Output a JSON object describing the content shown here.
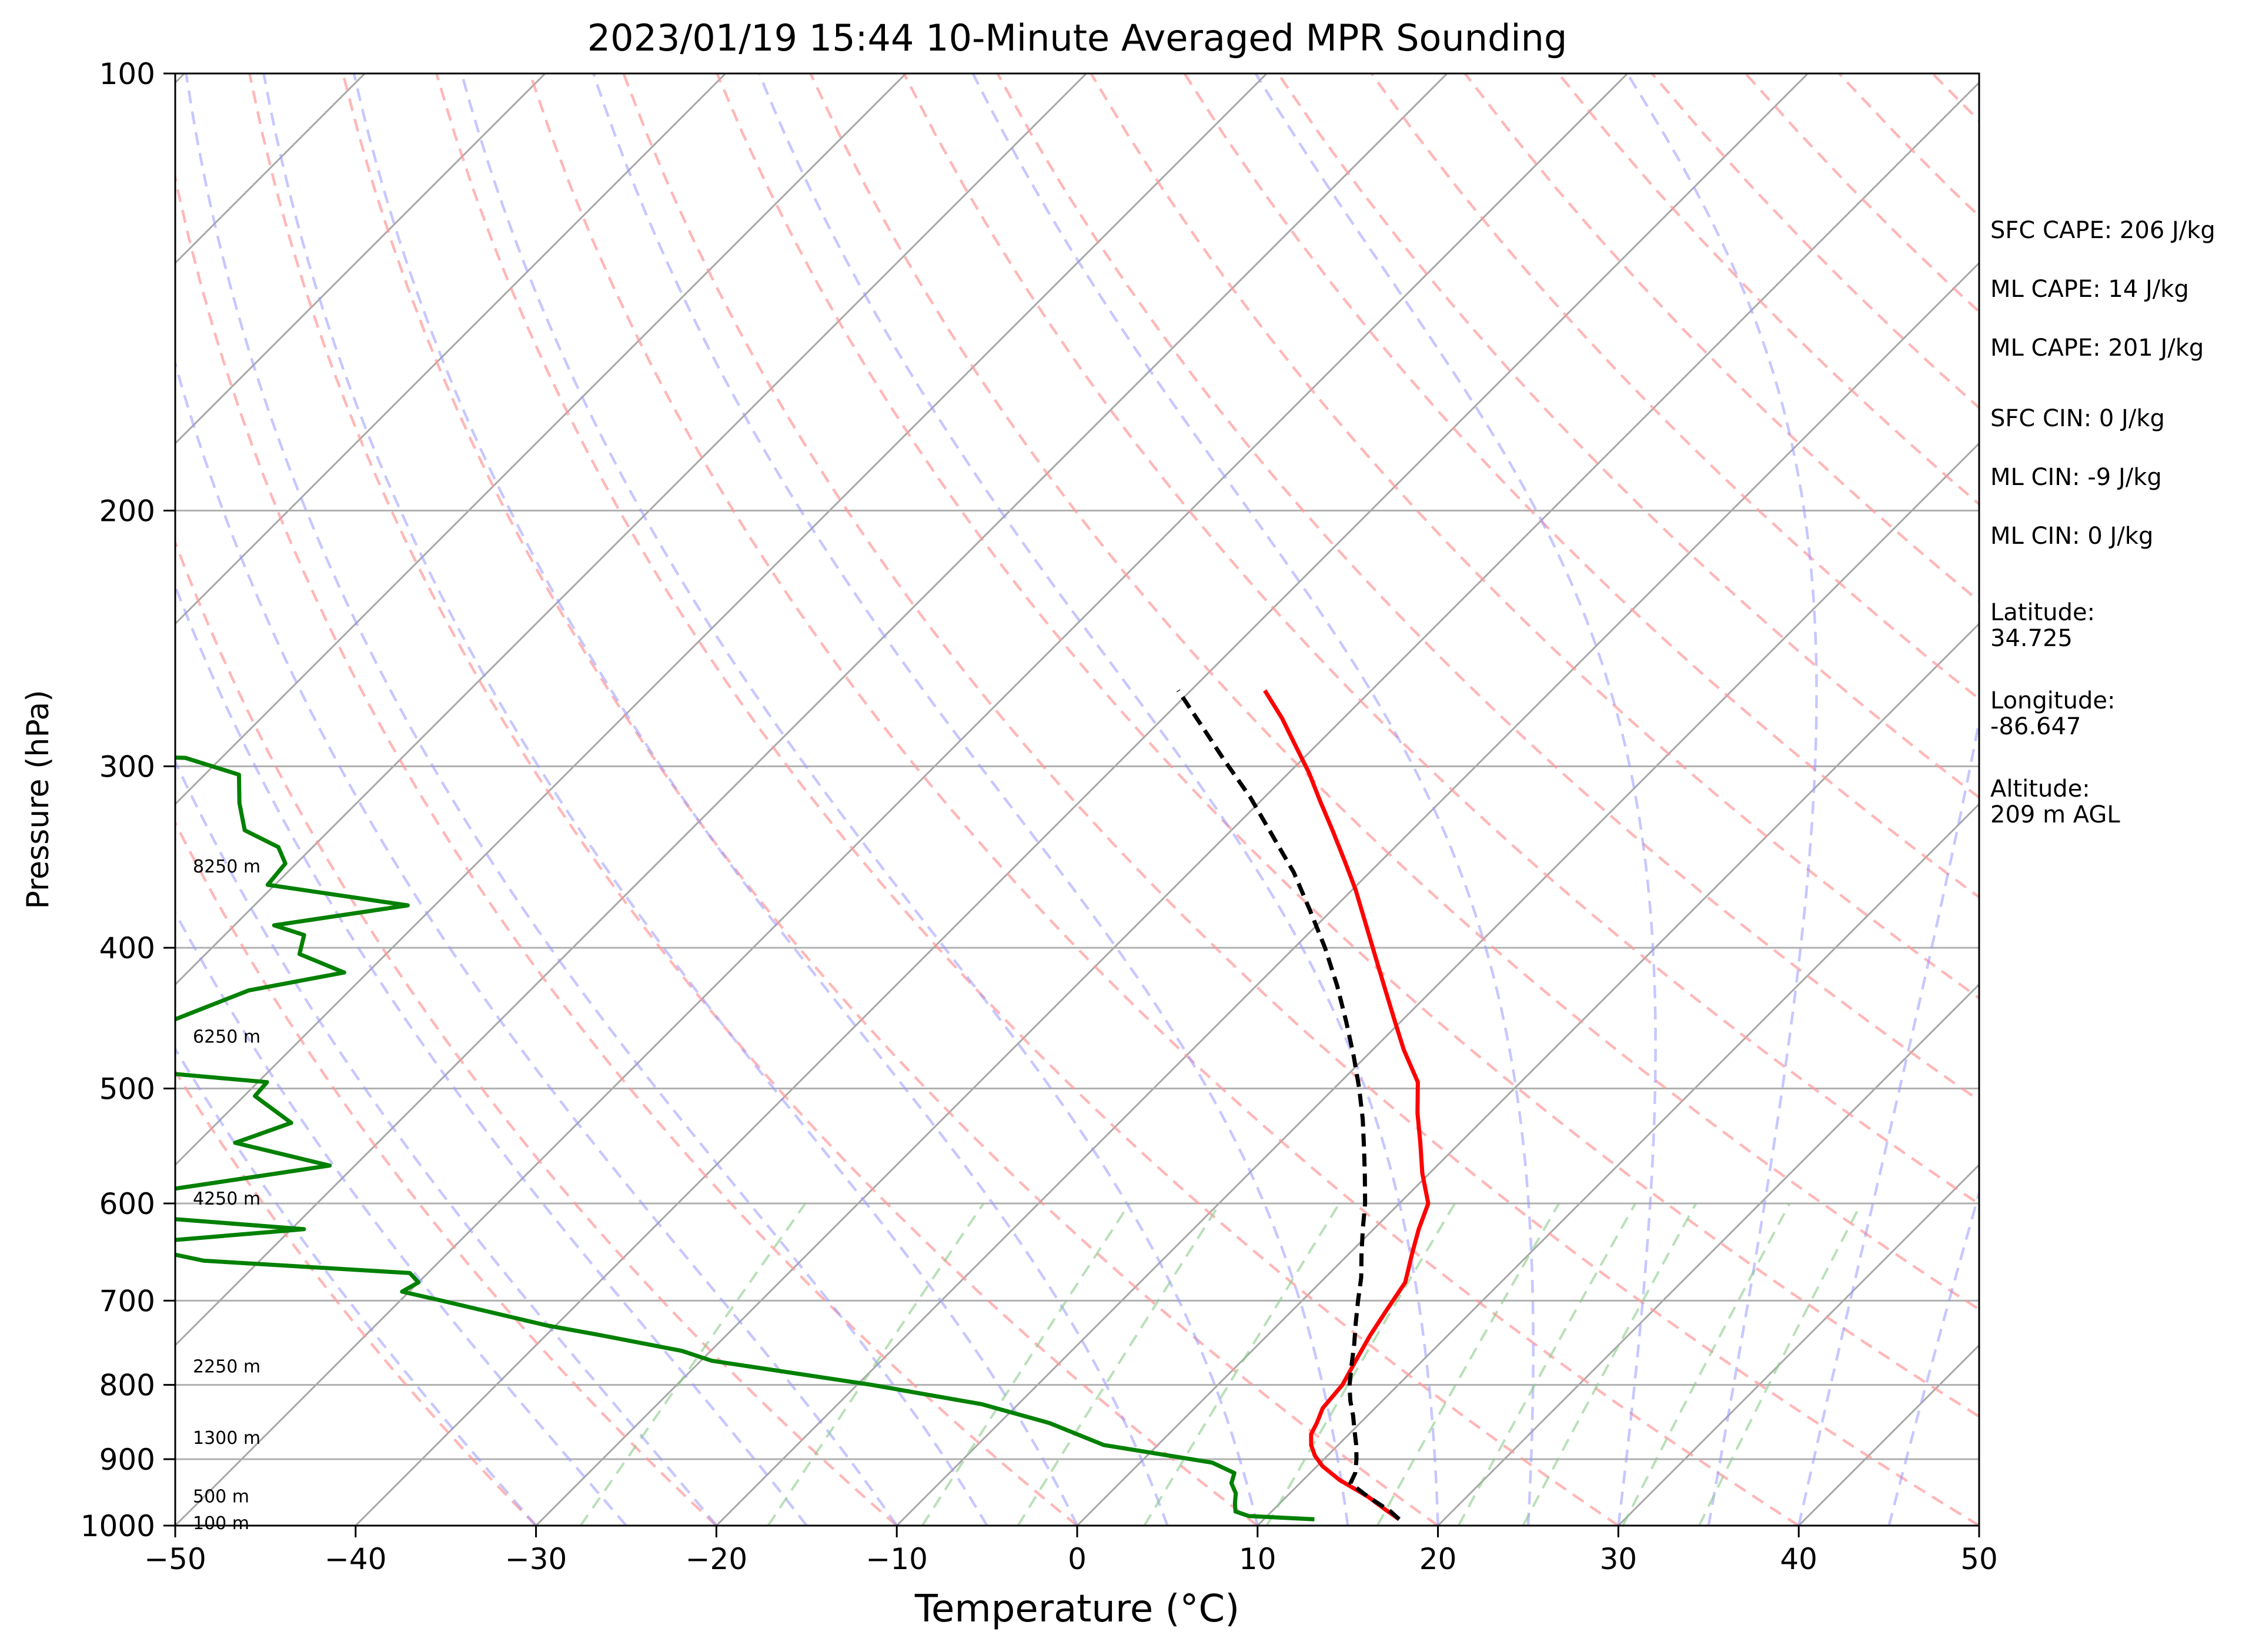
{
  "chart_data": {
    "type": "line",
    "title": "2023/01/19 15:44 10-Minute Averaged MPR Sounding",
    "xlabel": "Temperature (°C)",
    "ylabel": "Pressure (hPa)",
    "xlim": [
      -50,
      50
    ],
    "ylim": [
      1000,
      100
    ],
    "y_scale": "log",
    "grid": true,
    "x_ticks": [
      "−50",
      "−40",
      "−30",
      "−20",
      "−10",
      "0",
      "10",
      "20",
      "30",
      "40",
      "50"
    ],
    "y_ticks": [
      "100",
      "200",
      "300",
      "400",
      "500",
      "600",
      "700",
      "800",
      "900",
      "1000"
    ],
    "skew": true,
    "series": [
      {
        "color": "#ff0000",
        "style": "solid",
        "points": [
          [
            17.5,
            990
          ],
          [
            16.2,
            975
          ],
          [
            14.5,
            955
          ],
          [
            12.0,
            930
          ],
          [
            10.3,
            910
          ],
          [
            9.3,
            895
          ],
          [
            8.5,
            880
          ],
          [
            7.9,
            865
          ],
          [
            7.6,
            850
          ],
          [
            7.1,
            830
          ],
          [
            6.9,
            800
          ],
          [
            6.3,
            770
          ],
          [
            5.7,
            740
          ],
          [
            5.2,
            710
          ],
          [
            4.7,
            680
          ],
          [
            3.5,
            650
          ],
          [
            2.5,
            625
          ],
          [
            1.6,
            600
          ],
          [
            -0.4,
            572
          ],
          [
            -2.2,
            545
          ],
          [
            -4.0,
            520
          ],
          [
            -5.7,
            495
          ],
          [
            -8.3,
            470
          ],
          [
            -10.6,
            447
          ],
          [
            -12.9,
            425
          ],
          [
            -15.2,
            404
          ],
          [
            -17.5,
            384
          ],
          [
            -19.8,
            365
          ],
          [
            -22.1,
            348
          ],
          [
            -24.4,
            332
          ],
          [
            -26.7,
            317
          ],
          [
            -28.9,
            303
          ],
          [
            -31.2,
            290
          ],
          [
            -33.4,
            278
          ],
          [
            -35.9,
            266
          ]
        ]
      },
      {
        "color": "#000000",
        "style": "dashed",
        "points": [
          [
            17.5,
            990
          ],
          [
            16.6,
            978
          ],
          [
            14.5,
            955
          ],
          [
            12.8,
            935
          ],
          [
            12.5,
            920
          ],
          [
            11.8,
            900
          ],
          [
            11.0,
            880
          ],
          [
            10.1,
            860
          ],
          [
            9.2,
            840
          ],
          [
            8.2,
            820
          ],
          [
            7.3,
            800
          ],
          [
            6.3,
            775
          ],
          [
            5.3,
            750
          ],
          [
            4.2,
            725
          ],
          [
            3.1,
            700
          ],
          [
            2.0,
            675
          ],
          [
            0.7,
            650
          ],
          [
            -0.6,
            625
          ],
          [
            -1.9,
            600
          ],
          [
            -3.4,
            575
          ],
          [
            -5.0,
            550
          ],
          [
            -6.7,
            525
          ],
          [
            -8.6,
            500
          ],
          [
            -10.7,
            475
          ],
          [
            -13.0,
            450
          ],
          [
            -15.5,
            425
          ],
          [
            -18.3,
            400
          ],
          [
            -21.2,
            377
          ],
          [
            -24.2,
            355
          ],
          [
            -27.4,
            335
          ],
          [
            -30.8,
            315
          ],
          [
            -34.3,
            297
          ],
          [
            -37.3,
            282
          ],
          [
            -40.7,
            266
          ]
        ]
      },
      {
        "color": "#008000",
        "style": "solid",
        "points": [
          [
            12.8,
            990
          ],
          [
            9.0,
            985
          ],
          [
            8.0,
            978
          ],
          [
            7.5,
            965
          ],
          [
            7.0,
            950
          ],
          [
            6.2,
            935
          ],
          [
            5.8,
            920
          ],
          [
            4.0,
            905
          ],
          [
            -3.0,
            880
          ],
          [
            -7.2,
            850
          ],
          [
            -12.0,
            825
          ],
          [
            -19.2,
            800
          ],
          [
            -29.4,
            770
          ],
          [
            -31.6,
            758
          ],
          [
            -36.8,
            740
          ],
          [
            -40.5,
            728
          ],
          [
            -47.7,
            700
          ],
          [
            -50.4,
            690
          ],
          [
            -50.0,
            680
          ],
          [
            -51.0,
            670
          ],
          [
            -63.1,
            657
          ],
          [
            -68.4,
            640
          ],
          [
            -59.3,
            625
          ],
          [
            -75.0,
            605
          ],
          [
            -61.4,
            565
          ],
          [
            -67.9,
            545
          ],
          [
            -65.9,
            528
          ],
          [
            -69.4,
            506
          ],
          [
            -69.5,
            495
          ],
          [
            -78.3,
            485
          ],
          [
            -77.7,
            465
          ],
          [
            -78.3,
            450
          ],
          [
            -75.6,
            428
          ],
          [
            -71.3,
            416
          ],
          [
            -74.8,
            404
          ],
          [
            -75.6,
            392
          ],
          [
            -77.8,
            386
          ],
          [
            -71.5,
            374
          ],
          [
            -80.4,
            362
          ],
          [
            -80.6,
            350
          ],
          [
            -81.9,
            341
          ],
          [
            -84.7,
            332
          ],
          [
            -86.5,
            318
          ],
          [
            -88.1,
            304
          ],
          [
            -92.0,
            296
          ],
          [
            -113.0,
            291
          ],
          [
            -114.4,
            282
          ],
          [
            -115.6,
            282
          ],
          [
            -114.1,
            264
          ]
        ]
      }
    ],
    "height_labels": [
      {
        "text": "8250 m",
        "p": 352
      },
      {
        "text": "6250 m",
        "p": 461
      },
      {
        "text": "4250 m",
        "p": 596
      },
      {
        "text": "2250 m",
        "p": 778
      },
      {
        "text": "1300 m",
        "p": 871
      },
      {
        "text": "500 m",
        "p": 956
      },
      {
        "text": "100 m",
        "p": 997
      }
    ]
  },
  "info": {
    "sfc_cape": "SFC CAPE: 206 J/kg",
    "ml_cape_1": "ML CAPE: 14 J/kg",
    "ml_cape_2": "ML CAPE: 201 J/kg",
    "sfc_cin": "SFC CIN: 0 J/kg",
    "ml_cin_1": "ML CIN: -9 J/kg",
    "ml_cin_2": "ML CIN: 0 J/kg",
    "latitude": "Latitude:\n34.725",
    "longitude": "Longitude:\n-86.647",
    "altitude": "Altitude:\n209 m AGL"
  }
}
